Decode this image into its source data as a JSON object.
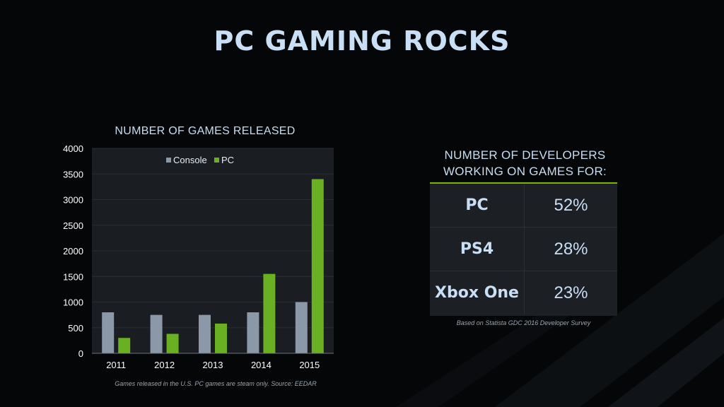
{
  "slide": {
    "title": "PC GAMING ROCKS"
  },
  "colors": {
    "background": "#050607",
    "console": "#8a98a8",
    "pc": "#6ab023",
    "accent": "#76b900",
    "panel": "#1c1f24"
  },
  "chart_data": {
    "type": "bar",
    "title": "NUMBER OF GAMES RELEASED",
    "xlabel": "",
    "ylabel": "",
    "categories": [
      "2011",
      "2012",
      "2013",
      "2014",
      "2015"
    ],
    "series": [
      {
        "name": "Console",
        "values": [
          800,
          750,
          750,
          800,
          1000
        ]
      },
      {
        "name": "PC",
        "values": [
          300,
          380,
          580,
          1550,
          3400
        ]
      }
    ],
    "ylim": [
      0,
      4000
    ],
    "yticks": [
      "0",
      "500",
      "1000",
      "1500",
      "2000",
      "2500",
      "3000",
      "3500",
      "4000"
    ],
    "grid": true,
    "legend": "top-center",
    "source": "Games released in the U.S.  PC games are steam only.  Source: EEDAR"
  },
  "developers": {
    "title_line1": "NUMBER OF DEVELOPERS",
    "title_line2": "WORKING ON GAMES FOR:",
    "rows": [
      {
        "platform": "PC",
        "value": "52%"
      },
      {
        "platform": "PS4",
        "value": "28%"
      },
      {
        "platform": "Xbox One",
        "value": "23%"
      }
    ],
    "source": "Based on Statista GDC 2016 Developer Survey"
  }
}
